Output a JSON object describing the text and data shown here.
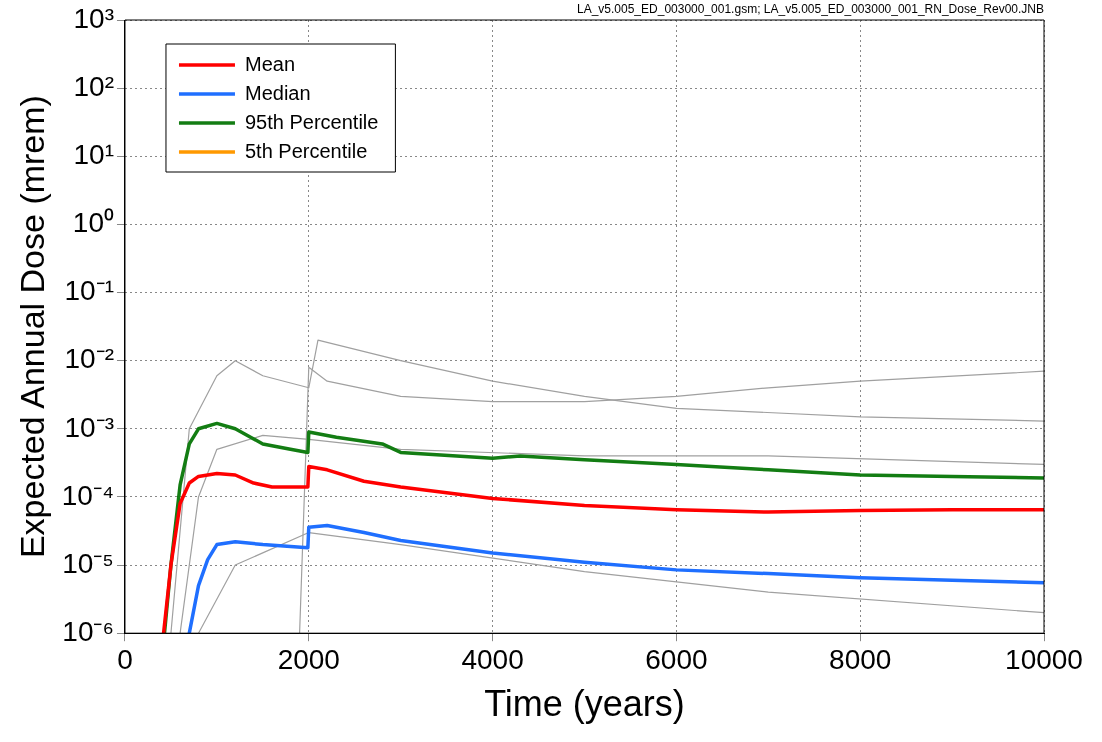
{
  "chart_data": {
    "type": "line",
    "xlabel": "Time (years)",
    "ylabel": "Expected Annual Dose (mrem)",
    "xlim": [
      0,
      10000
    ],
    "xticks": [
      0,
      2000,
      4000,
      6000,
      8000,
      10000
    ],
    "ylim": [
      1e-06,
      1000
    ],
    "yticks": [
      {
        "value": 1e-06,
        "label": "10⁻⁶"
      },
      {
        "value": 1e-05,
        "label": "10⁻⁵"
      },
      {
        "value": 0.0001,
        "label": "10⁻⁴"
      },
      {
        "value": 0.001,
        "label": "10⁻³"
      },
      {
        "value": 0.01,
        "label": "10⁻²"
      },
      {
        "value": 0.1,
        "label": "10⁻¹"
      },
      {
        "value": 1,
        "label": "10⁰"
      },
      {
        "value": 10,
        "label": "10¹"
      },
      {
        "value": 100,
        "label": "10²"
      },
      {
        "value": 1000,
        "label": "10³"
      }
    ],
    "log": "y",
    "grid": true,
    "legend": "top left",
    "marker": "none",
    "line_style": "solid",
    "annotations": [
      "LA_v5.005_ED_003000_001.gsm; LA_v5.005_ED_003000_001_RN_Dose_Rev00.JNB"
    ],
    "series": [
      {
        "color": "#a0a0a0",
        "x": [
          1900,
          2000,
          2200,
          3000,
          4000,
          5000,
          6000,
          7000,
          8000,
          10000
        ],
        "values": [
          1e-06,
          0.008,
          0.005,
          0.003,
          0.0025,
          0.0025,
          0.003,
          0.004,
          0.005,
          0.007
        ]
      },
      {
        "color": "#a0a0a0",
        "x": [
          500,
          700,
          1000,
          1200,
          1500,
          2000,
          2100,
          3000,
          4000,
          5000,
          6000,
          8000,
          10000
        ],
        "values": [
          1e-06,
          0.001,
          0.006,
          0.01,
          0.006,
          0.004,
          0.02,
          0.01,
          0.005,
          0.003,
          0.002,
          0.0015,
          0.0013
        ]
      },
      {
        "color": "#a0a0a0",
        "x": [
          600,
          800,
          1000,
          1500,
          2000,
          3000,
          5000,
          7000,
          10000
        ],
        "values": [
          1e-06,
          0.0001,
          0.0005,
          0.0008,
          0.0007,
          0.0005,
          0.0004,
          0.0004,
          0.0003
        ]
      },
      {
        "color": "#a0a0a0",
        "x": [
          800,
          1200,
          2000,
          3000,
          5000,
          7000,
          10000
        ],
        "values": [
          1e-06,
          1e-05,
          3e-05,
          2e-05,
          8e-06,
          4e-06,
          2e-06
        ]
      },
      {
        "name": "Mean",
        "color": "#ff0000",
        "x": [
          420,
          500,
          600,
          700,
          800,
          1000,
          1200,
          1400,
          1600,
          1900,
          1990,
          2000,
          2200,
          2600,
          3000,
          4000,
          5000,
          6000,
          7000,
          8000,
          9000,
          10000
        ],
        "values": [
          1e-06,
          1e-05,
          8e-05,
          0.00016,
          0.0002,
          0.00022,
          0.00021,
          0.00016,
          0.00014,
          0.00014,
          0.00014,
          0.00028,
          0.00025,
          0.00017,
          0.00014,
          9.5e-05,
          7.5e-05,
          6.5e-05,
          6e-05,
          6.3e-05,
          6.5e-05,
          6.5e-05
        ]
      },
      {
        "name": "Median",
        "color": "#1f6fff",
        "x": [
          700,
          800,
          900,
          1000,
          1200,
          1500,
          1990,
          2000,
          2200,
          2600,
          3000,
          4000,
          5000,
          6000,
          7000,
          8000,
          9000,
          10000
        ],
        "values": [
          1e-06,
          5e-06,
          1.2e-05,
          2e-05,
          2.2e-05,
          2e-05,
          1.8e-05,
          3.6e-05,
          3.8e-05,
          3e-05,
          2.3e-05,
          1.5e-05,
          1.1e-05,
          8.5e-06,
          7.5e-06,
          6.5e-06,
          6e-06,
          5.5e-06
        ]
      },
      {
        "name": "95th Percentile",
        "color": "#137d13",
        "x": [
          430,
          500,
          600,
          700,
          800,
          1000,
          1200,
          1500,
          1800,
          1990,
          2000,
          2300,
          2800,
          3000,
          4000,
          4300,
          5000,
          6000,
          7000,
          8000,
          9000,
          10000
        ],
        "values": [
          1e-06,
          1e-05,
          0.00015,
          0.0006,
          0.001,
          0.0012,
          0.001,
          0.0006,
          0.0005,
          0.00045,
          0.0009,
          0.00075,
          0.0006,
          0.00045,
          0.00037,
          0.0004,
          0.00035,
          0.0003,
          0.00025,
          0.00021,
          0.0002,
          0.00019
        ]
      },
      {
        "name": "5th Percentile",
        "color": "#ff9900"
      }
    ]
  }
}
